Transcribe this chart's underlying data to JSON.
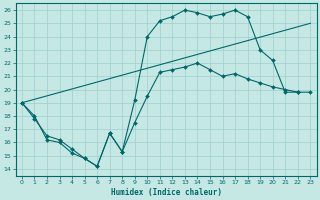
{
  "xlabel": "Humidex (Indice chaleur)",
  "bg_color": "#c5e8e5",
  "grid_color": "#9ecece",
  "line_color": "#006868",
  "xlim": [
    -0.5,
    23.5
  ],
  "ylim": [
    13.5,
    26.5
  ],
  "xticks": [
    0,
    1,
    2,
    3,
    4,
    5,
    6,
    7,
    8,
    9,
    10,
    11,
    12,
    13,
    14,
    15,
    16,
    17,
    18,
    19,
    20,
    21,
    22,
    23
  ],
  "yticks": [
    14,
    15,
    16,
    17,
    18,
    19,
    20,
    21,
    22,
    23,
    24,
    25,
    26
  ],
  "line1_x": [
    0,
    1,
    2,
    3,
    4,
    5,
    6,
    7,
    8,
    9,
    10,
    11,
    12,
    13,
    14,
    15,
    16,
    17,
    18,
    19,
    20,
    21,
    22,
    23
  ],
  "line1_y": [
    19,
    18,
    16.2,
    16.0,
    15.2,
    14.8,
    14.2,
    16.7,
    15.3,
    19.2,
    24.0,
    25.2,
    25.5,
    26.0,
    25.8,
    25.5,
    25.7,
    26.0,
    25.5,
    23.0,
    22.2,
    19.8,
    19.8,
    null
  ],
  "line2_x": [
    0,
    23
  ],
  "line2_y": [
    19,
    25
  ],
  "line3_x": [
    0,
    1,
    2,
    3,
    4,
    5,
    6,
    7,
    8,
    9,
    10,
    11,
    12,
    13,
    14,
    15,
    16,
    17,
    18,
    19,
    20,
    21,
    22,
    23
  ],
  "line3_y": [
    19,
    17.8,
    16.5,
    16.2,
    15.5,
    14.8,
    14.2,
    16.7,
    15.3,
    17.5,
    19.5,
    21.3,
    21.5,
    21.7,
    22.0,
    21.5,
    21.0,
    21.2,
    20.8,
    20.5,
    20.2,
    20.0,
    19.8,
    19.8
  ]
}
